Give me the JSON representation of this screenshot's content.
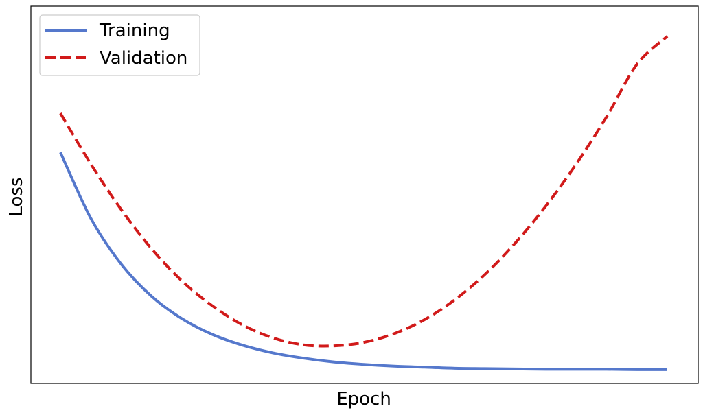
{
  "chart_data": {
    "type": "line",
    "xlabel": "Epoch",
    "ylabel": "Loss",
    "xlim": [
      0,
      100
    ],
    "ylim": [
      0,
      100
    ],
    "x_ticks_visible": false,
    "y_ticks_visible": false,
    "grid": false,
    "legend": {
      "placement": "top-left",
      "entries": [
        "Training",
        "Validation"
      ]
    },
    "series": [
      {
        "name": "Training",
        "color": "#5578cc",
        "line_style": "solid",
        "x": [
          0,
          5,
          10,
          15,
          20,
          25,
          30,
          35,
          40,
          45,
          50,
          55,
          60,
          65,
          70,
          75,
          80,
          85,
          90,
          95,
          100
        ],
        "y": [
          63.3,
          44.5,
          31.4,
          22.2,
          15.8,
          11.3,
          8.2,
          6.0,
          4.5,
          3.4,
          2.7,
          2.2,
          1.9,
          1.6,
          1.5,
          1.4,
          1.3,
          1.3,
          1.3,
          1.2,
          1.2
        ]
      },
      {
        "name": "Validation",
        "color": "#d11a1a",
        "line_style": "dashed",
        "x": [
          0,
          5,
          10,
          15,
          20,
          25,
          30,
          35,
          40,
          45,
          50,
          55,
          60,
          65,
          70,
          75,
          80,
          85,
          90,
          95,
          100
        ],
        "y": [
          74.5,
          60.0,
          47.0,
          35.8,
          26.6,
          19.5,
          14.0,
          10.3,
          8.3,
          8.0,
          9.0,
          11.5,
          15.5,
          21.2,
          28.5,
          37.5,
          48.0,
          60.0,
          73.5,
          88.5,
          96.5
        ]
      }
    ]
  }
}
